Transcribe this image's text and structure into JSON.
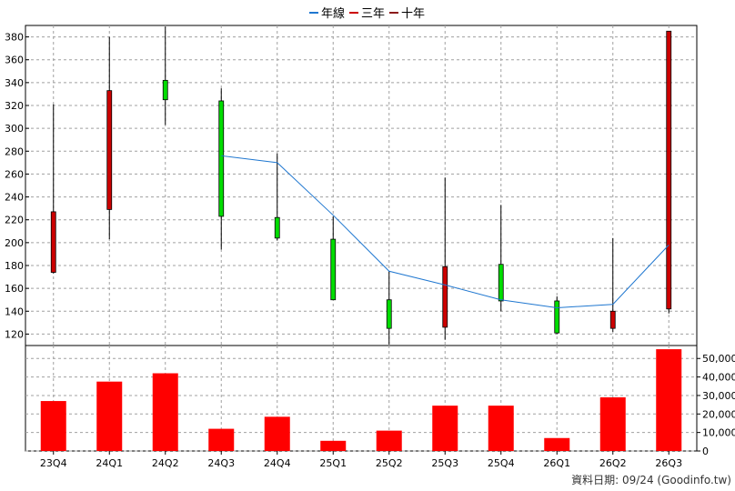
{
  "chart_data": {
    "type": "candlestick",
    "legend": {
      "placement": "top-center",
      "items": [
        {
          "label": "年線",
          "color": "#1f77d0"
        },
        {
          "label": "三年",
          "color": "#cc0000"
        },
        {
          "label": "十年",
          "color": "#8b1a1a"
        }
      ]
    },
    "categories": [
      "23Q4",
      "24Q1",
      "24Q2",
      "24Q3",
      "24Q4",
      "25Q1",
      "25Q2",
      "25Q3",
      "25Q4",
      "26Q1",
      "26Q2",
      "26Q3"
    ],
    "candles": [
      {
        "open": 174,
        "close": 227,
        "high": 321,
        "low": 173
      },
      {
        "open": 229,
        "close": 333,
        "high": 380,
        "low": 203
      },
      {
        "open": 342,
        "close": 325,
        "high": 389,
        "low": 303
      },
      {
        "open": 324,
        "close": 223,
        "high": 335,
        "low": 194
      },
      {
        "open": 222,
        "close": 204,
        "high": 278,
        "low": 202
      },
      {
        "open": 203,
        "close": 150,
        "high": 223,
        "low": 150
      },
      {
        "open": 150,
        "close": 125,
        "high": 175,
        "low": 111
      },
      {
        "open": 126,
        "close": 179,
        "high": 257,
        "low": 115
      },
      {
        "open": 181,
        "close": 149,
        "high": 233,
        "low": 140
      },
      {
        "open": 149,
        "close": 121,
        "high": 153,
        "low": 120
      },
      {
        "open": 125,
        "close": 140,
        "high": 204,
        "low": 122
      },
      {
        "open": 142,
        "close": 385,
        "high": 385,
        "low": 138
      }
    ],
    "year_line": [
      null,
      null,
      null,
      276,
      270,
      224,
      175,
      163,
      150,
      143,
      146,
      198
    ],
    "volume": [
      27000,
      37500,
      42000,
      12000,
      18500,
      5500,
      11000,
      24500,
      24500,
      7000,
      29000,
      55000
    ],
    "price_axis": {
      "min": 110,
      "max": 390,
      "ticks": [
        120,
        140,
        160,
        180,
        200,
        220,
        240,
        260,
        280,
        300,
        320,
        340,
        360,
        380
      ]
    },
    "volume_axis": {
      "min": 0,
      "max": 57000,
      "ticks": [
        0,
        10000,
        20000,
        30000,
        40000,
        50000
      ],
      "tick_labels": [
        "0",
        "10,000",
        "20,000",
        "30,000",
        "40,000",
        "50,000"
      ]
    },
    "grid": true,
    "colors": {
      "up": "#00dd00",
      "down": "#cc0000",
      "volume": "#ff0000",
      "year_line": "#1f77d0"
    }
  },
  "footer": {
    "date_note": "資料日期: 09/24  (Goodinfo.tw)"
  }
}
